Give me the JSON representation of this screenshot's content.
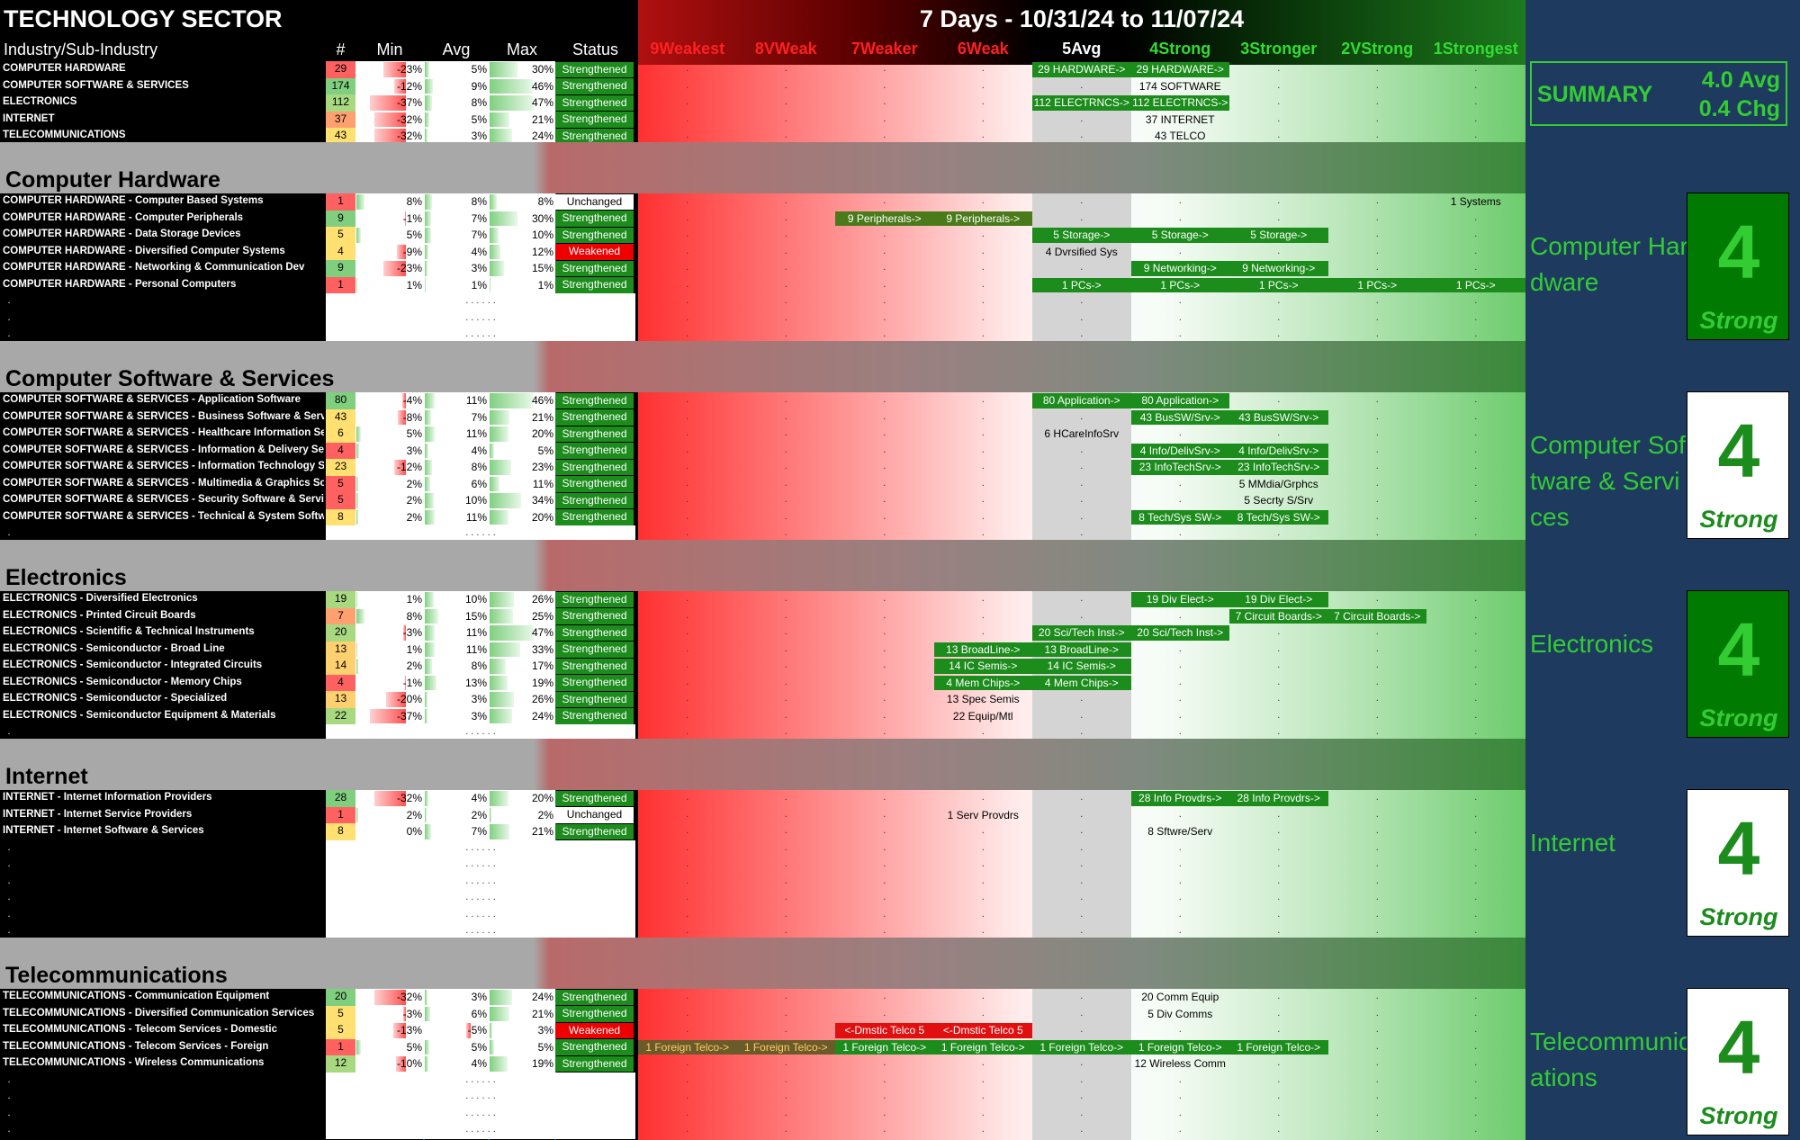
{
  "title": "TECHNOLOGY SECTOR",
  "date_range": "7 Days - 10/31/24 to 11/07/24",
  "columns": {
    "industry": "Industry/Sub-Industry",
    "count": "#",
    "min": "Min",
    "avg": "Avg",
    "max": "Max",
    "status": "Status"
  },
  "scale": [
    "9Weakest",
    "8VWeak",
    "7Weaker",
    "6Weak",
    "5Avg",
    "4Strong",
    "3Stronger",
    "2VStrong",
    "1Strongest"
  ],
  "scale_colors": [
    "#ff2020",
    "#ff2020",
    "#ff2020",
    "#ff2020",
    "#ffffff",
    "#33dd33",
    "#33dd33",
    "#33dd33",
    "#33dd33"
  ],
  "summary": {
    "label": "SUMMARY",
    "avg": "4.0 Avg",
    "chg": "0.4 Chg"
  },
  "overview_rows": [
    {
      "name": "COMPUTER HARDWARE",
      "count": "29",
      "min": "-23%",
      "avg": "5%",
      "max": "30%",
      "status": "Strengthened",
      "minv": -23,
      "avgv": 5,
      "maxv": 30,
      "cc": "#ff6060"
    },
    {
      "name": "COMPUTER SOFTWARE & SERVICES",
      "count": "174",
      "min": "-12%",
      "avg": "9%",
      "max": "46%",
      "status": "Strengthened",
      "minv": -12,
      "avgv": 9,
      "maxv": 46,
      "cc": "#7fcf7f"
    },
    {
      "name": "ELECTRONICS",
      "count": "112",
      "min": "-37%",
      "avg": "8%",
      "max": "47%",
      "status": "Strengthened",
      "minv": -37,
      "avgv": 8,
      "maxv": 47,
      "cc": "#a8d880"
    },
    {
      "name": "INTERNET",
      "count": "37",
      "min": "-32%",
      "avg": "5%",
      "max": "21%",
      "status": "Strengthened",
      "minv": -32,
      "avgv": 5,
      "maxv": 21,
      "cc": "#ffa070"
    },
    {
      "name": "TELECOMMUNICATIONS",
      "count": "43",
      "min": "-32%",
      "avg": "3%",
      "max": "24%",
      "status": "Strengthened",
      "minv": -32,
      "avgv": 3,
      "maxv": 24,
      "cc": "#ffe070"
    }
  ],
  "overview_markers": [
    {
      "row": 0,
      "col": 4,
      "text": "29 HARDWARE->",
      "style": "g"
    },
    {
      "row": 0,
      "col": 5,
      "text": "29 HARDWARE->",
      "style": "g"
    },
    {
      "row": 1,
      "col": 5,
      "text": "174 SOFTWARE",
      "style": "t"
    },
    {
      "row": 2,
      "col": 4,
      "text": "112 ELECTRNCS->",
      "style": "g"
    },
    {
      "row": 2,
      "col": 5,
      "text": "112 ELECTRNCS->",
      "style": "g"
    },
    {
      "row": 3,
      "col": 5,
      "text": "37 INTERNET",
      "style": "t"
    },
    {
      "row": 4,
      "col": 5,
      "text": "43 TELCO",
      "style": "t"
    }
  ],
  "sections": [
    {
      "title": "Computer Hardware",
      "side_label": "Computer Hardware",
      "score": "4",
      "score_label": "Strong",
      "score_bg": "#007a00",
      "rows": [
        {
          "name": "COMPUTER HARDWARE - Computer Based Systems",
          "count": "1",
          "min": "8%",
          "avg": "8%",
          "max": "8%",
          "status": "Unchanged",
          "minv": 8,
          "avgv": 8,
          "maxv": 8,
          "cc": "#ff6060"
        },
        {
          "name": "COMPUTER HARDWARE - Computer Peripherals",
          "count": "9",
          "min": "-1%",
          "avg": "7%",
          "max": "30%",
          "status": "Strengthened",
          "minv": -1,
          "avgv": 7,
          "maxv": 30,
          "cc": "#7fcf7f"
        },
        {
          "name": "COMPUTER HARDWARE - Data Storage Devices",
          "count": "5",
          "min": "5%",
          "avg": "7%",
          "max": "10%",
          "status": "Strengthened",
          "minv": 5,
          "avgv": 7,
          "maxv": 10,
          "cc": "#ffe070"
        },
        {
          "name": "COMPUTER HARDWARE - Diversified Computer Systems",
          "count": "4",
          "min": "-9%",
          "avg": "4%",
          "max": "12%",
          "status": "Weakened",
          "minv": -9,
          "avgv": 4,
          "maxv": 12,
          "cc": "#ffe070"
        },
        {
          "name": "COMPUTER HARDWARE - Networking & Communication Dev",
          "count": "9",
          "min": "-23%",
          "avg": "3%",
          "max": "15%",
          "status": "Strengthened",
          "minv": -23,
          "avgv": 3,
          "maxv": 15,
          "cc": "#7fcf7f"
        },
        {
          "name": "COMPUTER HARDWARE - Personal Computers",
          "count": "1",
          "min": "1%",
          "avg": "1%",
          "max": "1%",
          "status": "Strengthened",
          "minv": 1,
          "avgv": 1,
          "maxv": 1,
          "cc": "#ff6060"
        }
      ],
      "blank_rows": 3,
      "markers": [
        {
          "row": 0,
          "col": 8,
          "text": "1 Systems",
          "style": "t"
        },
        {
          "row": 1,
          "col": 2,
          "text": "9 Peripherals->",
          "style": "d"
        },
        {
          "row": 1,
          "col": 3,
          "text": "9 Peripherals->",
          "style": "d"
        },
        {
          "row": 2,
          "col": 4,
          "text": "5 Storage->",
          "style": "g"
        },
        {
          "row": 2,
          "col": 5,
          "text": "5 Storage->",
          "style": "g"
        },
        {
          "row": 2,
          "col": 6,
          "text": "5 Storage->",
          "style": "g"
        },
        {
          "row": 3,
          "col": 4,
          "text": "4 Dvrsified Sys",
          "style": "t"
        },
        {
          "row": 4,
          "col": 5,
          "text": "9 Networking->",
          "style": "g"
        },
        {
          "row": 4,
          "col": 6,
          "text": "9 Networking->",
          "style": "g"
        },
        {
          "row": 5,
          "col": 4,
          "text": "1 PCs->",
          "style": "g"
        },
        {
          "row": 5,
          "col": 5,
          "text": "1 PCs->",
          "style": "g"
        },
        {
          "row": 5,
          "col": 6,
          "text": "1 PCs->",
          "style": "g"
        },
        {
          "row": 5,
          "col": 7,
          "text": "1 PCs->",
          "style": "g"
        },
        {
          "row": 5,
          "col": 8,
          "text": "1 PCs->",
          "style": "g"
        }
      ]
    },
    {
      "title": "Computer Software & Services",
      "side_label": "Computer Software & Services",
      "score": "4",
      "score_label": "Strong",
      "score_bg": "#ffffff",
      "rows": [
        {
          "name": "COMPUTER SOFTWARE & SERVICES - Application Software",
          "count": "80",
          "min": "-4%",
          "avg": "11%",
          "max": "46%",
          "status": "Strengthened",
          "minv": -4,
          "avgv": 11,
          "maxv": 46,
          "cc": "#7fcf7f"
        },
        {
          "name": "COMPUTER SOFTWARE & SERVICES - Business Software & Services",
          "count": "43",
          "min": "-8%",
          "avg": "7%",
          "max": "21%",
          "status": "Strengthened",
          "minv": -8,
          "avgv": 7,
          "maxv": 21,
          "cc": "#ffe070"
        },
        {
          "name": "COMPUTER SOFTWARE & SERVICES - Healthcare Information Services",
          "count": "6",
          "min": "5%",
          "avg": "11%",
          "max": "20%",
          "status": "Strengthened",
          "minv": 5,
          "avgv": 11,
          "maxv": 20,
          "cc": "#ffe070"
        },
        {
          "name": "COMPUTER SOFTWARE & SERVICES - Information & Delivery Services",
          "count": "4",
          "min": "3%",
          "avg": "4%",
          "max": "5%",
          "status": "Strengthened",
          "minv": 3,
          "avgv": 4,
          "maxv": 5,
          "cc": "#ff6060"
        },
        {
          "name": "COMPUTER SOFTWARE & SERVICES - Information Technology Services",
          "count": "23",
          "min": "-12%",
          "avg": "8%",
          "max": "23%",
          "status": "Strengthened",
          "minv": -12,
          "avgv": 8,
          "maxv": 23,
          "cc": "#ffe070"
        },
        {
          "name": "COMPUTER SOFTWARE & SERVICES - Multimedia & Graphics Software",
          "count": "5",
          "min": "2%",
          "avg": "6%",
          "max": "11%",
          "status": "Strengthened",
          "minv": 2,
          "avgv": 6,
          "maxv": 11,
          "cc": "#ff6060"
        },
        {
          "name": "COMPUTER SOFTWARE & SERVICES - Security Software & Services",
          "count": "5",
          "min": "2%",
          "avg": "10%",
          "max": "34%",
          "status": "Strengthened",
          "minv": 2,
          "avgv": 10,
          "maxv": 34,
          "cc": "#ff6060"
        },
        {
          "name": "COMPUTER SOFTWARE & SERVICES - Technical & System Software",
          "count": "8",
          "min": "2%",
          "avg": "11%",
          "max": "20%",
          "status": "Strengthened",
          "minv": 2,
          "avgv": 11,
          "maxv": 20,
          "cc": "#ffe070"
        }
      ],
      "blank_rows": 1,
      "markers": [
        {
          "row": 0,
          "col": 4,
          "text": "80 Application->",
          "style": "g"
        },
        {
          "row": 0,
          "col": 5,
          "text": "80 Application->",
          "style": "g"
        },
        {
          "row": 1,
          "col": 5,
          "text": "43 BusSW/Srv->",
          "style": "g"
        },
        {
          "row": 1,
          "col": 6,
          "text": "43 BusSW/Srv->",
          "style": "g"
        },
        {
          "row": 2,
          "col": 4,
          "text": "6 HCareInfoSrv",
          "style": "t"
        },
        {
          "row": 3,
          "col": 5,
          "text": "4 Info/DelivSrv->",
          "style": "g"
        },
        {
          "row": 3,
          "col": 6,
          "text": "4 Info/DelivSrv->",
          "style": "g"
        },
        {
          "row": 4,
          "col": 5,
          "text": "23 InfoTechSrv->",
          "style": "g"
        },
        {
          "row": 4,
          "col": 6,
          "text": "23 InfoTechSrv->",
          "style": "g"
        },
        {
          "row": 5,
          "col": 6,
          "text": "5 MMdia/Grphcs",
          "style": "t"
        },
        {
          "row": 6,
          "col": 6,
          "text": "5 Secrty S/Srv",
          "style": "t"
        },
        {
          "row": 7,
          "col": 5,
          "text": "8 Tech/Sys SW->",
          "style": "g"
        },
        {
          "row": 7,
          "col": 6,
          "text": "8 Tech/Sys SW->",
          "style": "g"
        }
      ]
    },
    {
      "title": "Electronics",
      "side_label": "Electronics",
      "score": "4",
      "score_label": "Strong",
      "score_bg": "#007a00",
      "rows": [
        {
          "name": "ELECTRONICS - Diversified Electronics",
          "count": "19",
          "min": "1%",
          "avg": "10%",
          "max": "26%",
          "status": "Strengthened",
          "minv": 1,
          "avgv": 10,
          "maxv": 26,
          "cc": "#a8d880"
        },
        {
          "name": "ELECTRONICS - Printed Circuit Boards",
          "count": "7",
          "min": "8%",
          "avg": "15%",
          "max": "25%",
          "status": "Strengthened",
          "minv": 8,
          "avgv": 15,
          "maxv": 25,
          "cc": "#ffa070"
        },
        {
          "name": "ELECTRONICS - Scientific & Technical Instruments",
          "count": "20",
          "min": "-3%",
          "avg": "11%",
          "max": "47%",
          "status": "Strengthened",
          "minv": -3,
          "avgv": 11,
          "maxv": 47,
          "cc": "#a8d880"
        },
        {
          "name": "ELECTRONICS - Semiconductor - Broad Line",
          "count": "13",
          "min": "1%",
          "avg": "11%",
          "max": "33%",
          "status": "Strengthened",
          "minv": 1,
          "avgv": 11,
          "maxv": 33,
          "cc": "#ffd070"
        },
        {
          "name": "ELECTRONICS - Semiconductor - Integrated Circuits",
          "count": "14",
          "min": "2%",
          "avg": "8%",
          "max": "17%",
          "status": "Strengthened",
          "minv": 2,
          "avgv": 8,
          "maxv": 17,
          "cc": "#ffd070"
        },
        {
          "name": "ELECTRONICS - Semiconductor - Memory Chips",
          "count": "4",
          "min": "-1%",
          "avg": "13%",
          "max": "19%",
          "status": "Strengthened",
          "minv": -1,
          "avgv": 13,
          "maxv": 19,
          "cc": "#ff6060"
        },
        {
          "name": "ELECTRONICS - Semiconductor - Specialized",
          "count": "13",
          "min": "-20%",
          "avg": "3%",
          "max": "26%",
          "status": "Strengthened",
          "minv": -20,
          "avgv": 3,
          "maxv": 26,
          "cc": "#ffd070"
        },
        {
          "name": "ELECTRONICS - Semiconductor Equipment & Materials",
          "count": "22",
          "min": "-37%",
          "avg": "3%",
          "max": "24%",
          "status": "Strengthened",
          "minv": -37,
          "avgv": 3,
          "maxv": 24,
          "cc": "#a8d880"
        }
      ],
      "blank_rows": 1,
      "markers": [
        {
          "row": 0,
          "col": 5,
          "text": "19 Div Elect->",
          "style": "g"
        },
        {
          "row": 0,
          "col": 6,
          "text": "19 Div Elect->",
          "style": "g"
        },
        {
          "row": 1,
          "col": 6,
          "text": "7 Circuit Boards->",
          "style": "g"
        },
        {
          "row": 1,
          "col": 7,
          "text": "7 Circuit Boards->",
          "style": "g"
        },
        {
          "row": 2,
          "col": 4,
          "text": "20 Sci/Tech Inst->",
          "style": "g"
        },
        {
          "row": 2,
          "col": 5,
          "text": "20 Sci/Tech Inst->",
          "style": "g"
        },
        {
          "row": 3,
          "col": 3,
          "text": "13 BroadLine->",
          "style": "g"
        },
        {
          "row": 3,
          "col": 4,
          "text": "13 BroadLine->",
          "style": "g"
        },
        {
          "row": 4,
          "col": 3,
          "text": "14 IC Semis->",
          "style": "g"
        },
        {
          "row": 4,
          "col": 4,
          "text": "14 IC Semis->",
          "style": "g"
        },
        {
          "row": 5,
          "col": 3,
          "text": "4 Mem Chips->",
          "style": "g"
        },
        {
          "row": 5,
          "col": 4,
          "text": "4 Mem Chips->",
          "style": "g"
        },
        {
          "row": 6,
          "col": 3,
          "text": "13 Spec Semis",
          "style": "t"
        },
        {
          "row": 7,
          "col": 3,
          "text": "22 Equip/Mtl",
          "style": "t"
        }
      ]
    },
    {
      "title": "Internet",
      "side_label": "Internet",
      "score": "4",
      "score_label": "Strong",
      "score_bg": "#ffffff",
      "rows": [
        {
          "name": "INTERNET - Internet Information Providers",
          "count": "28",
          "min": "-32%",
          "avg": "4%",
          "max": "20%",
          "status": "Strengthened",
          "minv": -32,
          "avgv": 4,
          "maxv": 20,
          "cc": "#7fcf7f"
        },
        {
          "name": "INTERNET - Internet Service Providers",
          "count": "1",
          "min": "2%",
          "avg": "2%",
          "max": "2%",
          "status": "Unchanged",
          "minv": 2,
          "avgv": 2,
          "maxv": 2,
          "cc": "#ff6060"
        },
        {
          "name": "INTERNET - Internet Software & Services",
          "count": "8",
          "min": "0%",
          "avg": "7%",
          "max": "21%",
          "status": "Strengthened",
          "minv": 0,
          "avgv": 7,
          "maxv": 21,
          "cc": "#ffe070"
        }
      ],
      "blank_rows": 6,
      "markers": [
        {
          "row": 0,
          "col": 5,
          "text": "28 Info Provdrs->",
          "style": "g"
        },
        {
          "row": 0,
          "col": 6,
          "text": "28 Info Provdrs->",
          "style": "g"
        },
        {
          "row": 1,
          "col": 3,
          "text": "1 Serv Provdrs",
          "style": "t"
        },
        {
          "row": 2,
          "col": 5,
          "text": "8 Sftwre/Serv",
          "style": "t"
        }
      ]
    },
    {
      "title": "Telecommunications",
      "side_label": "Telecommunications",
      "score": "4",
      "score_label": "Strong",
      "score_bg": "#ffffff",
      "rows": [
        {
          "name": "TELECOMMUNICATIONS - Communication Equipment",
          "count": "20",
          "min": "-32%",
          "avg": "3%",
          "max": "24%",
          "status": "Strengthened",
          "minv": -32,
          "avgv": 3,
          "maxv": 24,
          "cc": "#7fcf7f"
        },
        {
          "name": "TELECOMMUNICATIONS - Diversified Communication Services",
          "count": "5",
          "min": "-3%",
          "avg": "6%",
          "max": "21%",
          "status": "Strengthened",
          "minv": -3,
          "avgv": 6,
          "maxv": 21,
          "cc": "#ffe070"
        },
        {
          "name": "TELECOMMUNICATIONS - Telecom Services - Domestic",
          "count": "5",
          "min": "-13%",
          "avg": "-5%",
          "max": "3%",
          "status": "Weakened",
          "minv": -13,
          "avgv": -5,
          "maxv": 3,
          "cc": "#ffe070"
        },
        {
          "name": "TELECOMMUNICATIONS - Telecom Services - Foreign",
          "count": "1",
          "min": "5%",
          "avg": "5%",
          "max": "5%",
          "status": "Strengthened",
          "minv": 5,
          "avgv": 5,
          "maxv": 5,
          "cc": "#ff6060"
        },
        {
          "name": "TELECOMMUNICATIONS - Wireless Communications",
          "count": "12",
          "min": "-10%",
          "avg": "4%",
          "max": "19%",
          "status": "Strengthened",
          "minv": -10,
          "avgv": 4,
          "maxv": 19,
          "cc": "#a8d880"
        }
      ],
      "blank_rows": 4,
      "markers": [
        {
          "row": 0,
          "col": 5,
          "text": "20 Comm Equip",
          "style": "t"
        },
        {
          "row": 1,
          "col": 5,
          "text": "5 Div Comms",
          "style": "t"
        },
        {
          "row": 2,
          "col": 2,
          "text": "<-Dmstic Telco 5",
          "style": "r"
        },
        {
          "row": 2,
          "col": 3,
          "text": "<-Dmstic Telco 5",
          "style": "r"
        },
        {
          "row": 3,
          "col": 0,
          "text": "1 Foreign Telco->",
          "style": "o"
        },
        {
          "row": 3,
          "col": 1,
          "text": "1 Foreign Telco->",
          "style": "o"
        },
        {
          "row": 3,
          "col": 2,
          "text": "1 Foreign Telco->",
          "style": "g"
        },
        {
          "row": 3,
          "col": 3,
          "text": "1 Foreign Telco->",
          "style": "g"
        },
        {
          "row": 3,
          "col": 4,
          "text": "1 Foreign Telco->",
          "style": "g"
        },
        {
          "row": 3,
          "col": 5,
          "text": "1 Foreign Telco->",
          "style": "g"
        },
        {
          "row": 3,
          "col": 6,
          "text": "1 Foreign Telco->",
          "style": "g"
        },
        {
          "row": 4,
          "col": 5,
          "text": "12 Wireless Comm",
          "style": "t"
        }
      ]
    }
  ]
}
